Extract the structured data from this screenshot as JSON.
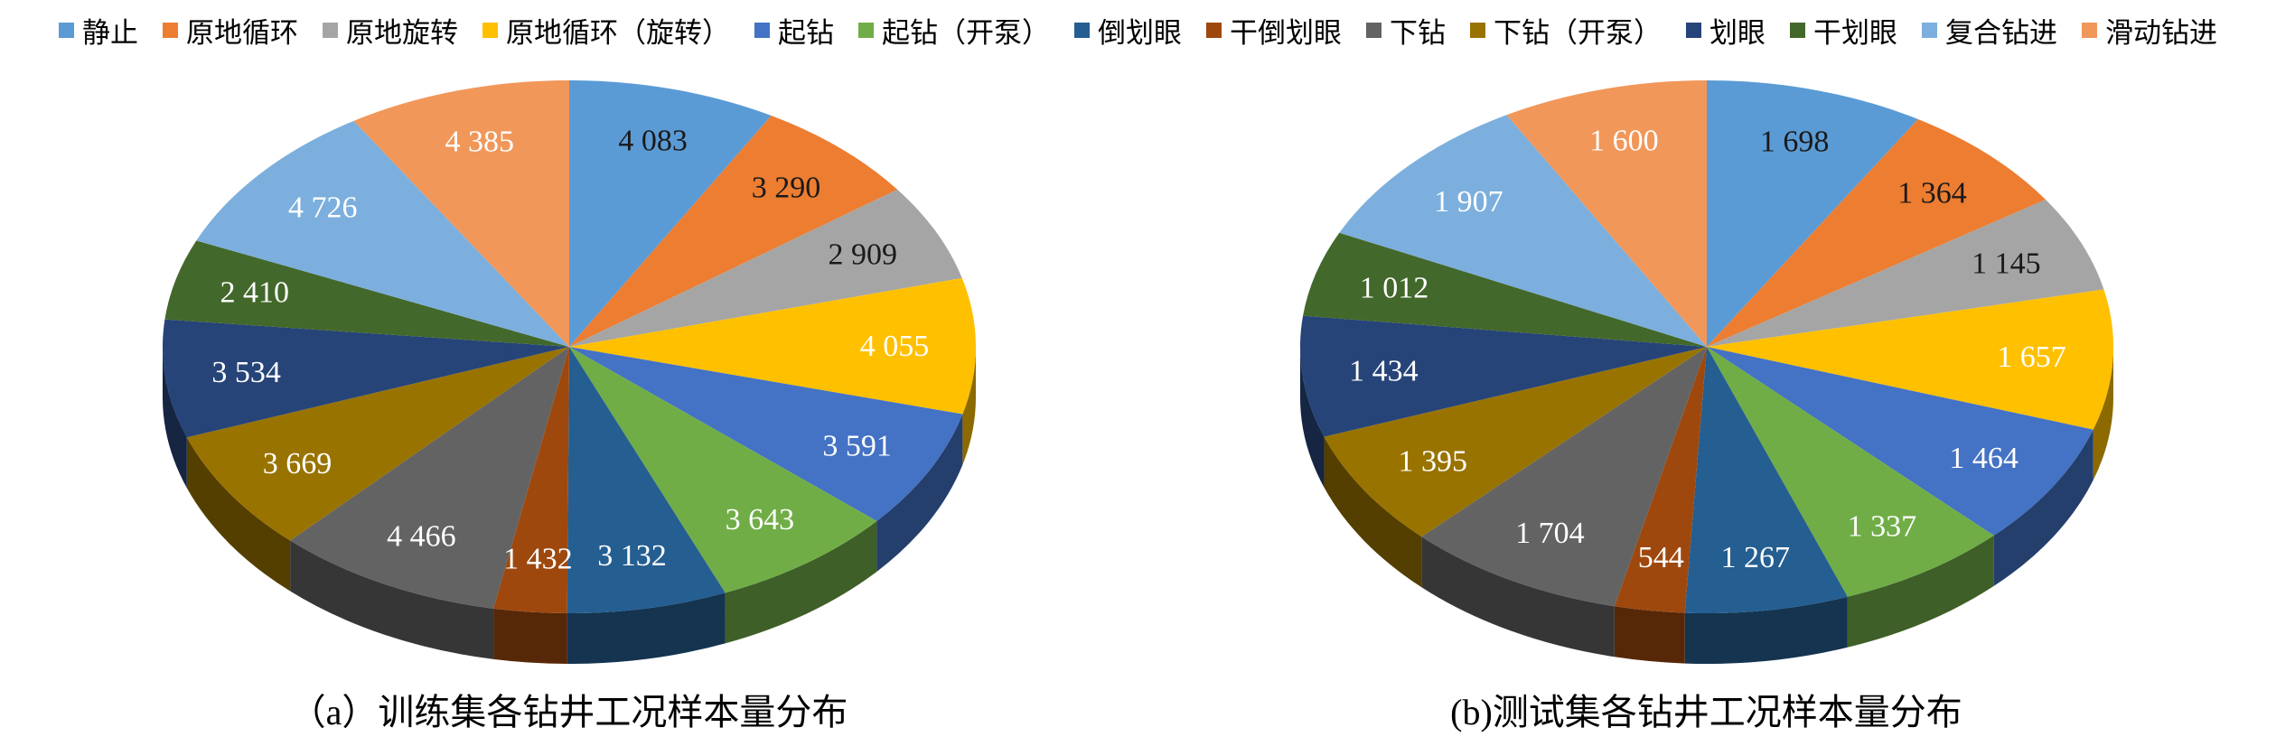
{
  "legend": {
    "position": "top",
    "items": [
      {
        "label": "静止",
        "color": "#5B9BD5"
      },
      {
        "label": "原地循环",
        "color": "#ED7D31"
      },
      {
        "label": "原地旋转",
        "color": "#A5A5A5"
      },
      {
        "label": "原地循环（旋转）",
        "color": "#FFC000"
      },
      {
        "label": "起钻",
        "color": "#4472C4"
      },
      {
        "label": "起钻（开泵）",
        "color": "#70AD47"
      },
      {
        "label": "倒划眼",
        "color": "#255E91"
      },
      {
        "label": "干倒划眼",
        "color": "#9E480E"
      },
      {
        "label": "下钻",
        "color": "#636363"
      },
      {
        "label": "下钻（开泵）",
        "color": "#997300"
      },
      {
        "label": "划眼",
        "color": "#264478"
      },
      {
        "label": "干划眼",
        "color": "#43682B"
      },
      {
        "label": "复合钻进",
        "color": "#7CAFDD"
      },
      {
        "label": "滑动钻进",
        "color": "#F1975A"
      }
    ]
  },
  "chart_data": [
    {
      "type": "pie",
      "style": "3d",
      "title": "（a）训练集各钻井工况样本量分布",
      "categories": [
        "静止",
        "原地循环",
        "原地旋转",
        "原地循环（旋转）",
        "起钻",
        "起钻（开泵）",
        "倒划眼",
        "干倒划眼",
        "下钻",
        "下钻（开泵）",
        "划眼",
        "干划眼",
        "复合钻进",
        "滑动钻进"
      ],
      "values": [
        4083,
        3290,
        2909,
        4055,
        3591,
        3643,
        3132,
        1432,
        4466,
        3669,
        3534,
        2410,
        4726,
        4385
      ],
      "colors": [
        "#5B9BD5",
        "#ED7D31",
        "#A5A5A5",
        "#FFC000",
        "#4472C4",
        "#70AD47",
        "#255E91",
        "#9E480E",
        "#636363",
        "#997300",
        "#264478",
        "#43682B",
        "#7CAFDD",
        "#F1975A"
      ],
      "data_labels": "values",
      "thousands_separator": " ",
      "start_angle_deg": 0,
      "direction": "clockwise",
      "legend_position": "top"
    },
    {
      "type": "pie",
      "style": "3d",
      "title": "(b)测试集各钻井工况样本量分布",
      "categories": [
        "静止",
        "原地循环",
        "原地旋转",
        "原地循环（旋转）",
        "起钻",
        "起钻（开泵）",
        "倒划眼",
        "干倒划眼",
        "下钻",
        "下钻（开泵）",
        "划眼",
        "干划眼",
        "复合钻进",
        "滑动钻进"
      ],
      "values": [
        1698,
        1364,
        1145,
        1657,
        1464,
        1337,
        1267,
        544,
        1704,
        1395,
        1434,
        1012,
        1907,
        1600
      ],
      "colors": [
        "#5B9BD5",
        "#ED7D31",
        "#A5A5A5",
        "#FFC000",
        "#4472C4",
        "#70AD47",
        "#255E91",
        "#9E480E",
        "#636363",
        "#997300",
        "#264478",
        "#43682B",
        "#7CAFDD",
        "#F1975A"
      ],
      "data_labels": "values",
      "thousands_separator": " ",
      "start_angle_deg": 0,
      "direction": "clockwise",
      "legend_position": "top"
    }
  ]
}
